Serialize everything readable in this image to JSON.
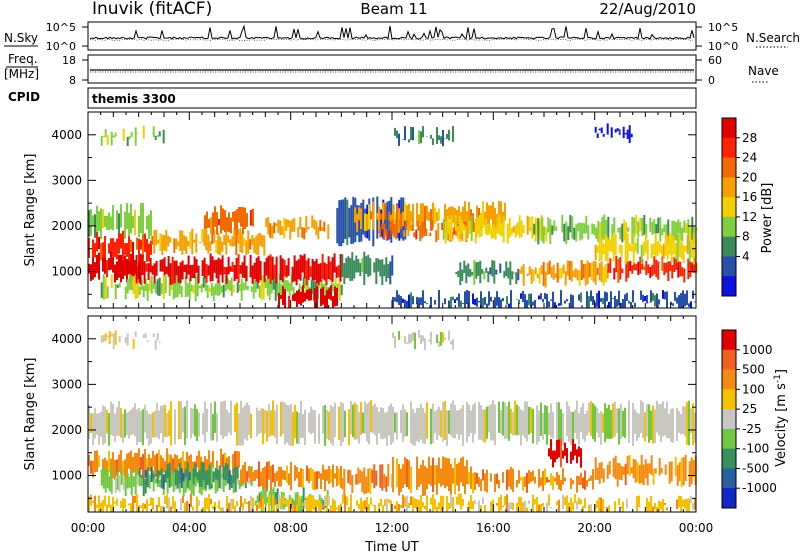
{
  "header": {
    "station": "Inuvik (fitACF)",
    "beam": "Beam 11",
    "date": "22/Aug/2010"
  },
  "left_labels": {
    "nsky": "N.Sky",
    "freq_line1": "Freq.",
    "freq_line2": "[MHz]",
    "cpid": "CPID"
  },
  "right_labels": {
    "nsearch": "N.Search",
    "nave": "Nave"
  },
  "cpid_text": "themis 3300",
  "x_axis": {
    "label": "Time UT",
    "ticks": [
      "00:00",
      "04:00",
      "08:00",
      "12:00",
      "16:00",
      "20:00",
      "00:00"
    ]
  },
  "chart_data": [
    {
      "type": "line",
      "panel": "noise",
      "left_ticks": [
        "10^5",
        "10^0"
      ],
      "right_ticks": [
        "10^5",
        "10^0"
      ]
    },
    {
      "type": "line",
      "panel": "frequency",
      "left_ticks": [
        "18",
        "8"
      ],
      "right_ticks": [
        "60",
        "0"
      ]
    },
    {
      "type": "heatmap",
      "panel": "power",
      "ylabel": "Slant Range [km]",
      "yticks": [
        "4000",
        "3000",
        "2000",
        "1000"
      ],
      "ylim": [
        200,
        4500
      ],
      "xlim_hours": [
        0,
        24
      ],
      "colorbar_label": "Power [dB]",
      "colorbar_ticks": [
        "28",
        "24",
        "20",
        "16",
        "12",
        "8",
        "4"
      ],
      "colors": [
        "#1010e0",
        "#2850a8",
        "#3a8a5a",
        "#7fcf40",
        "#f0d000",
        "#f5a000",
        "#f06a00",
        "#ff2200",
        "#e00000"
      ],
      "bands": [
        {
          "t0": 0,
          "t1": 2.0,
          "r0": 900,
          "r1": 1300,
          "level": 8
        },
        {
          "t0": 0,
          "t1": 2.5,
          "r0": 1350,
          "r1": 1750,
          "level": 7
        },
        {
          "t0": 0,
          "t1": 2.5,
          "r0": 1850,
          "r1": 2350,
          "level": 3
        },
        {
          "t0": 0.5,
          "t1": 10.0,
          "r0": 500,
          "r1": 800,
          "level": 3
        },
        {
          "t0": 1.8,
          "t1": 10.0,
          "r0": 850,
          "r1": 1250,
          "level": 8
        },
        {
          "t0": 2.5,
          "t1": 7.0,
          "r0": 1500,
          "r1": 1800,
          "level": 5
        },
        {
          "t0": 4.5,
          "t1": 6.5,
          "r0": 1950,
          "r1": 2300,
          "level": 6
        },
        {
          "t0": 7.0,
          "t1": 9.5,
          "r0": 1850,
          "r1": 2100,
          "level": 5
        },
        {
          "t0": 7.5,
          "t1": 9.8,
          "r0": 250,
          "r1": 550,
          "level": 8
        },
        {
          "t0": 9.8,
          "t1": 12.5,
          "r0": 1700,
          "r1": 2500,
          "level": 1
        },
        {
          "t0": 10.0,
          "t1": 12.0,
          "r0": 850,
          "r1": 1300,
          "level": 2
        },
        {
          "t0": 10.5,
          "t1": 16.5,
          "r0": 2000,
          "r1": 2400,
          "level": 5
        },
        {
          "t0": 11.5,
          "t1": 15.5,
          "r0": 1800,
          "r1": 2000,
          "level": 6
        },
        {
          "t0": 14.0,
          "t1": 18.0,
          "r0": 1750,
          "r1": 2100,
          "level": 4
        },
        {
          "t0": 14.5,
          "t1": 17.0,
          "r0": 850,
          "r1": 1100,
          "level": 2
        },
        {
          "t0": 17.5,
          "t1": 24.0,
          "r0": 1750,
          "r1": 2100,
          "level": 3
        },
        {
          "t0": 17.0,
          "t1": 20.5,
          "r0": 800,
          "r1": 1100,
          "level": 5
        },
        {
          "t0": 20.5,
          "t1": 24.0,
          "r0": 900,
          "r1": 1200,
          "level": 7
        },
        {
          "t0": 20.0,
          "t1": 24.0,
          "r0": 1300,
          "r1": 1700,
          "level": 4
        },
        {
          "t0": 12.0,
          "t1": 24.0,
          "r0": 250,
          "r1": 450,
          "level": 1
        },
        {
          "t0": 0.5,
          "t1": 3.0,
          "r0": 3900,
          "r1": 4050,
          "level": 3
        },
        {
          "t0": 12.0,
          "t1": 14.5,
          "r0": 3900,
          "r1": 4050,
          "level": 2
        },
        {
          "t0": 20.0,
          "t1": 21.5,
          "r0": 3950,
          "r1": 4100,
          "level": 0
        }
      ]
    },
    {
      "type": "heatmap",
      "panel": "velocity",
      "ylabel": "Slant Range [km]",
      "yticks": [
        "4000",
        "3000",
        "2000",
        "1000"
      ],
      "ylim": [
        200,
        4500
      ],
      "xlim_hours": [
        0,
        24
      ],
      "colorbar_label": "Velocity [m s",
      "colorbar_exponent": "-1",
      "colorbar_close": "]",
      "colorbar_ticks": [
        "1000",
        "500",
        "100",
        "25",
        "-25",
        "-100",
        "-500",
        "-1000"
      ],
      "colors": [
        "#1028c8",
        "#2860a0",
        "#38905a",
        "#70c840",
        "#c8c8c0",
        "#f5c000",
        "#f58a10",
        "#f06020",
        "#e00000"
      ],
      "bands": [
        {
          "t0": 0,
          "t1": 24.0,
          "r0": 1800,
          "r1": 2500,
          "level": 4
        },
        {
          "t0": 0.5,
          "t1": 3.0,
          "r0": 3900,
          "r1": 4050,
          "level": 4
        },
        {
          "t0": 12.0,
          "t1": 14.5,
          "r0": 3900,
          "r1": 4050,
          "level": 4
        },
        {
          "t0": 0,
          "t1": 6.0,
          "r0": 1050,
          "r1": 1450,
          "level": 6
        },
        {
          "t0": 0.5,
          "t1": 6.5,
          "r0": 700,
          "r1": 1050,
          "level": 3
        },
        {
          "t0": 2.0,
          "t1": 6.0,
          "r0": 850,
          "r1": 1150,
          "level": 2
        },
        {
          "t0": 6.0,
          "t1": 10.0,
          "r0": 800,
          "r1": 1200,
          "level": 6
        },
        {
          "t0": 6.5,
          "t1": 9.5,
          "r0": 250,
          "r1": 600,
          "level": 3
        },
        {
          "t0": 10.0,
          "t1": 12.0,
          "r0": 700,
          "r1": 1100,
          "level": 6
        },
        {
          "t0": 12.0,
          "t1": 15.0,
          "r0": 700,
          "r1": 1300,
          "level": 6
        },
        {
          "t0": 15.0,
          "t1": 20.0,
          "r0": 750,
          "r1": 1050,
          "level": 6
        },
        {
          "t0": 18.0,
          "t1": 19.5,
          "r0": 1300,
          "r1": 1650,
          "level": 8
        },
        {
          "t0": 20.0,
          "t1": 24.0,
          "r0": 900,
          "r1": 1300,
          "level": 6
        },
        {
          "t0": 0,
          "t1": 24.0,
          "r0": 250,
          "r1": 450,
          "level": 5
        }
      ]
    }
  ]
}
